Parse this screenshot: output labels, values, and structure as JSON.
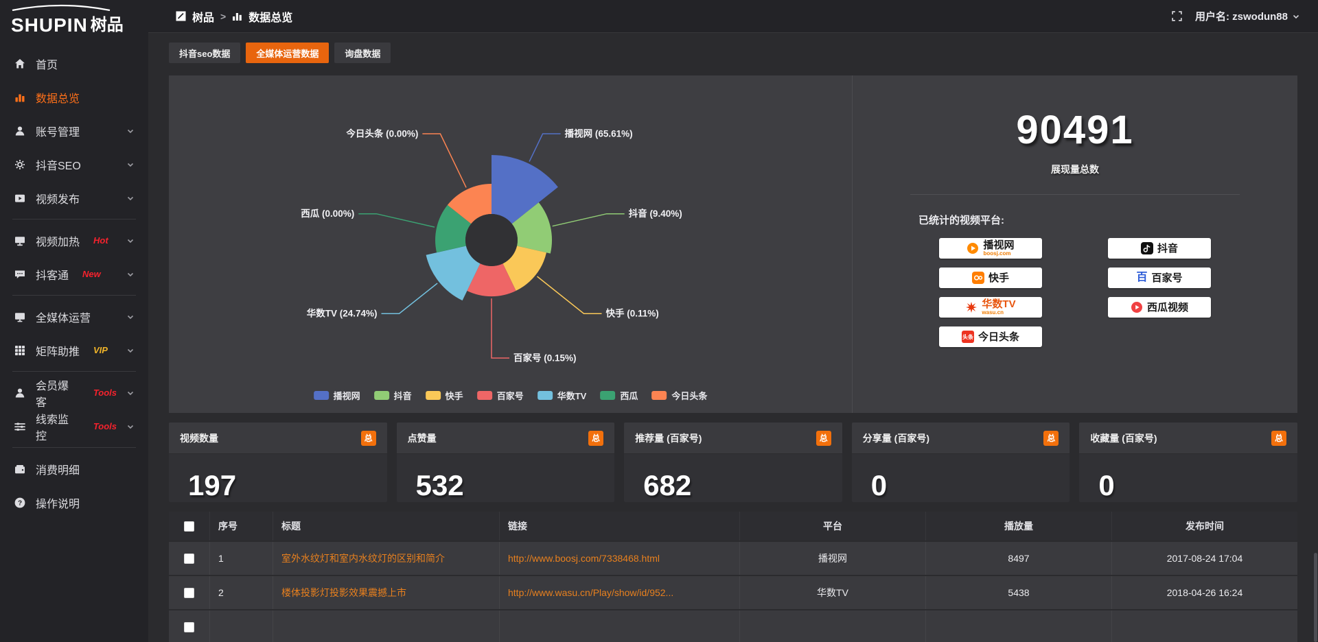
{
  "topbar": {
    "breadcrumb_app": "树品",
    "breadcrumb_sep": ">",
    "breadcrumb_page": "数据总览",
    "username": "用户名: zswodun88"
  },
  "sidebar": {
    "logo_en": "SHUPIN",
    "logo_cn": "树品",
    "items": [
      {
        "label": "首页",
        "icon": "home"
      },
      {
        "label": "数据总览",
        "icon": "chart",
        "active": true
      },
      {
        "label": "账号管理",
        "icon": "user",
        "chevron": true
      },
      {
        "label": "抖音SEO",
        "icon": "gear",
        "chevron": true
      },
      {
        "label": "视频发布",
        "icon": "video",
        "chevron": true
      },
      {
        "divider": true
      },
      {
        "label": "视频加热",
        "icon": "heat",
        "tag": "Hot",
        "tag_color": "#f5222d",
        "chevron": true
      },
      {
        "label": "抖客通",
        "icon": "chat",
        "tag": "New",
        "tag_color": "#f5222d",
        "chevron": true
      },
      {
        "divider": true
      },
      {
        "label": "全媒体运营",
        "icon": "monitor",
        "chevron": true
      },
      {
        "label": "矩阵助推",
        "icon": "grid",
        "tag": "VIP",
        "tag_color": "#f0b429",
        "chevron": true
      },
      {
        "divider": true
      },
      {
        "label": "会员爆客",
        "icon": "person",
        "tag": "Tools",
        "tag_color": "#f5222d",
        "chevron": true
      },
      {
        "label": "线索监控",
        "icon": "sliders",
        "tag": "Tools",
        "tag_color": "#f5222d",
        "chevron": true
      },
      {
        "divider": true
      },
      {
        "label": "消费明细",
        "icon": "wallet"
      },
      {
        "label": "操作说明",
        "icon": "question"
      }
    ]
  },
  "tabs": [
    {
      "label": "抖音seo数据"
    },
    {
      "label": "全媒体运营数据",
      "active": true
    },
    {
      "label": "询盘数据"
    }
  ],
  "chart_data": {
    "type": "pie",
    "subtype": "nightingale-rose",
    "categories": [
      "播视网",
      "抖音",
      "快手",
      "百家号",
      "华数TV",
      "西瓜",
      "今日头条"
    ],
    "values": [
      65.61,
      9.4,
      0.11,
      0.15,
      24.74,
      0.0,
      0.0
    ],
    "unit": "%",
    "labels": [
      "播视网 (65.61%)",
      "抖音 (9.40%)",
      "快手 (0.11%)",
      "百家号 (0.15%)",
      "华数TV (24.74%)",
      "西瓜 (0.00%)",
      "今日头条 (0.00%)"
    ],
    "colors": [
      "#5470c6",
      "#91cc75",
      "#fac858",
      "#ee6666",
      "#73c0de",
      "#3ba272",
      "#fc8452"
    ],
    "legend": [
      "播视网",
      "抖音",
      "快手",
      "百家号",
      "华数TV",
      "西瓜",
      "今日头条"
    ],
    "legend_position": "bottom"
  },
  "summary": {
    "total_value": "90491",
    "total_label": "展现量总数",
    "platforms_label": "已统计的视频平台:",
    "platforms": [
      {
        "name": "播视网",
        "sub": "boosj.com",
        "icon": "boosj",
        "brand_color": "#ff8a00"
      },
      {
        "name": "抖音",
        "icon": "douyin",
        "brand_color": "#111111"
      },
      {
        "name": "快手",
        "icon": "kuaishou",
        "brand_color": "#ff7e00"
      },
      {
        "name": "百家号",
        "icon": "baijiahao",
        "brand_color": "#2b5bd7"
      },
      {
        "name": "华数TV",
        "sub": "wasu.cn",
        "icon": "wasu",
        "brand_color": "#e8380d"
      },
      {
        "name": "西瓜视频",
        "icon": "xigua",
        "brand_color": "#f04142"
      },
      {
        "name": "今日头条",
        "icon": "toutiao",
        "brand_color": "#ed3321"
      }
    ]
  },
  "stat_cards": [
    {
      "label": "视频数量",
      "badge": "总",
      "value": "197"
    },
    {
      "label": "点赞量",
      "badge": "总",
      "value": "532"
    },
    {
      "label": "推荐量 (百家号)",
      "badge": "总",
      "value": "682"
    },
    {
      "label": "分享量 (百家号)",
      "badge": "总",
      "value": "0"
    },
    {
      "label": "收藏量 (百家号)",
      "badge": "总",
      "value": "0"
    }
  ],
  "table": {
    "columns": [
      {
        "key": "check",
        "label": ""
      },
      {
        "key": "no",
        "label": "序号"
      },
      {
        "key": "title",
        "label": "标题"
      },
      {
        "key": "link",
        "label": "链接"
      },
      {
        "key": "platform",
        "label": "平台"
      },
      {
        "key": "plays",
        "label": "播放量"
      },
      {
        "key": "time",
        "label": "发布时间"
      }
    ],
    "rows": [
      {
        "no": "1",
        "title": "室外水纹灯和室内水纹灯的区别和简介",
        "link": "http://www.boosj.com/7338468.html",
        "platform": "播视网",
        "plays": "8497",
        "time": "2017-08-24 17:04"
      },
      {
        "no": "2",
        "title": "楼体投影灯投影效果震撼上市",
        "link": "http://www.wasu.cn/Play/show/id/952...",
        "platform": "华数TV",
        "plays": "5438",
        "time": "2018-04-26 16:24"
      }
    ]
  },
  "colors": {
    "accent": "#e8650e",
    "tag_red": "#f5222d",
    "tag_gold": "#f0b429",
    "link_orange": "#e8801e"
  }
}
